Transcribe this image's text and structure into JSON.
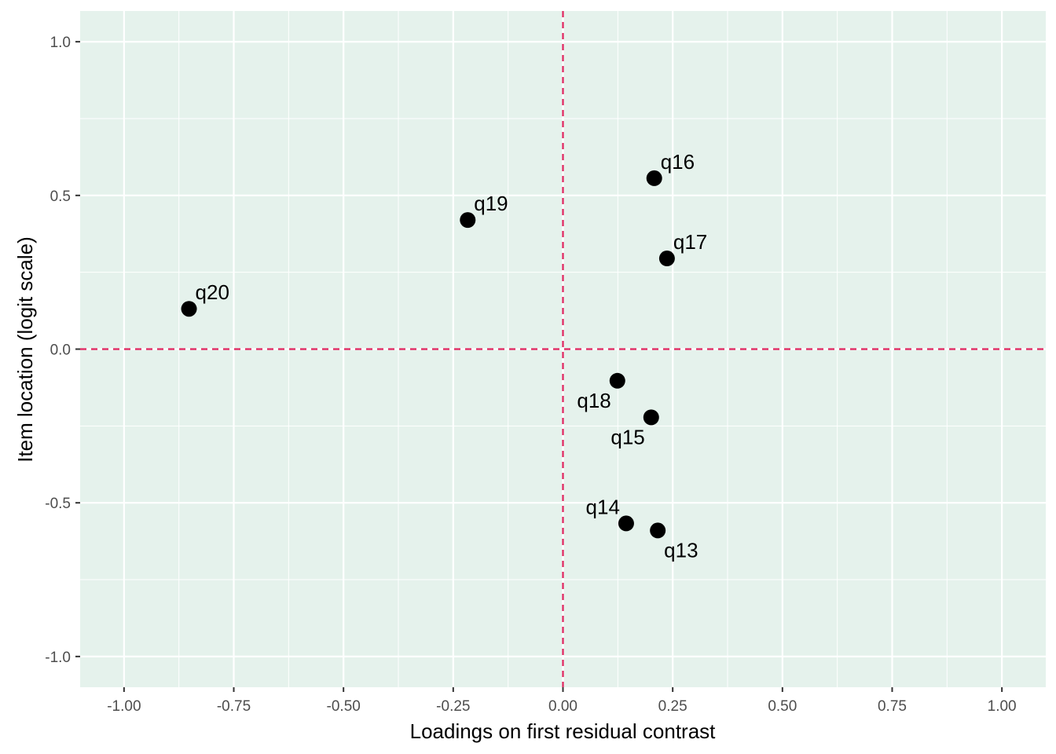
{
  "chart_data": {
    "type": "scatter",
    "title": "",
    "xlabel": "Loadings on first residual contrast",
    "ylabel": "Item location (logit scale)",
    "xlim": [
      -1.1,
      1.1
    ],
    "ylim": [
      -1.1,
      1.1
    ],
    "x_ticks": [
      -1.0,
      -0.75,
      -0.5,
      -0.25,
      0.0,
      0.25,
      0.5,
      0.75,
      1.0
    ],
    "x_tick_labels": [
      "-1.00",
      "-0.75",
      "-0.50",
      "-0.25",
      "0.00",
      "0.25",
      "0.50",
      "0.75",
      "1.00"
    ],
    "y_ticks": [
      -1.0,
      -0.5,
      0.0,
      0.5,
      1.0
    ],
    "y_tick_labels": [
      "-1.0",
      "-0.5",
      "0.0",
      "0.5",
      "1.0"
    ],
    "grid": true,
    "reference_lines": {
      "x": 0.0,
      "y": 0.0,
      "style": "dashed",
      "color": "#e0245e"
    },
    "colors": {
      "panel_background": "#e5f2ec",
      "grid": "#ffffff",
      "points": "#000000"
    },
    "points": [
      {
        "label": "q16",
        "x": 0.208,
        "y": 0.556,
        "label_pos": "above-right"
      },
      {
        "label": "q19",
        "x": -0.217,
        "y": 0.42,
        "label_pos": "above-right"
      },
      {
        "label": "q17",
        "x": 0.237,
        "y": 0.295,
        "label_pos": "above-right"
      },
      {
        "label": "q20",
        "x": -0.852,
        "y": 0.131,
        "label_pos": "above-right"
      },
      {
        "label": "q18",
        "x": 0.124,
        "y": -0.103,
        "label_pos": "below-left"
      },
      {
        "label": "q15",
        "x": 0.201,
        "y": -0.222,
        "label_pos": "below-left"
      },
      {
        "label": "q14",
        "x": 0.144,
        "y": -0.567,
        "label_pos": "above-left"
      },
      {
        "label": "q13",
        "x": 0.216,
        "y": -0.59,
        "label_pos": "below-right"
      }
    ]
  }
}
